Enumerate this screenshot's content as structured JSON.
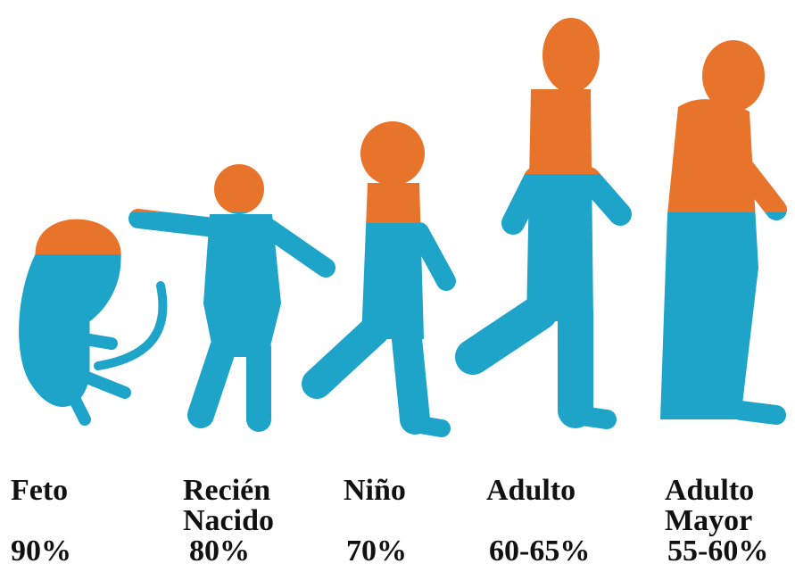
{
  "stages": [
    {
      "label": [
        "Feto"
      ],
      "percent": "90%"
    },
    {
      "label": [
        "Recién",
        "Nacido"
      ],
      "percent": "80%"
    },
    {
      "label": [
        "Niño"
      ],
      "percent": "70%"
    },
    {
      "label": [
        "Adulto"
      ],
      "percent": "60-65%"
    },
    {
      "label": [
        "Adulto",
        "Mayor"
      ],
      "percent": "55-60%"
    }
  ]
}
